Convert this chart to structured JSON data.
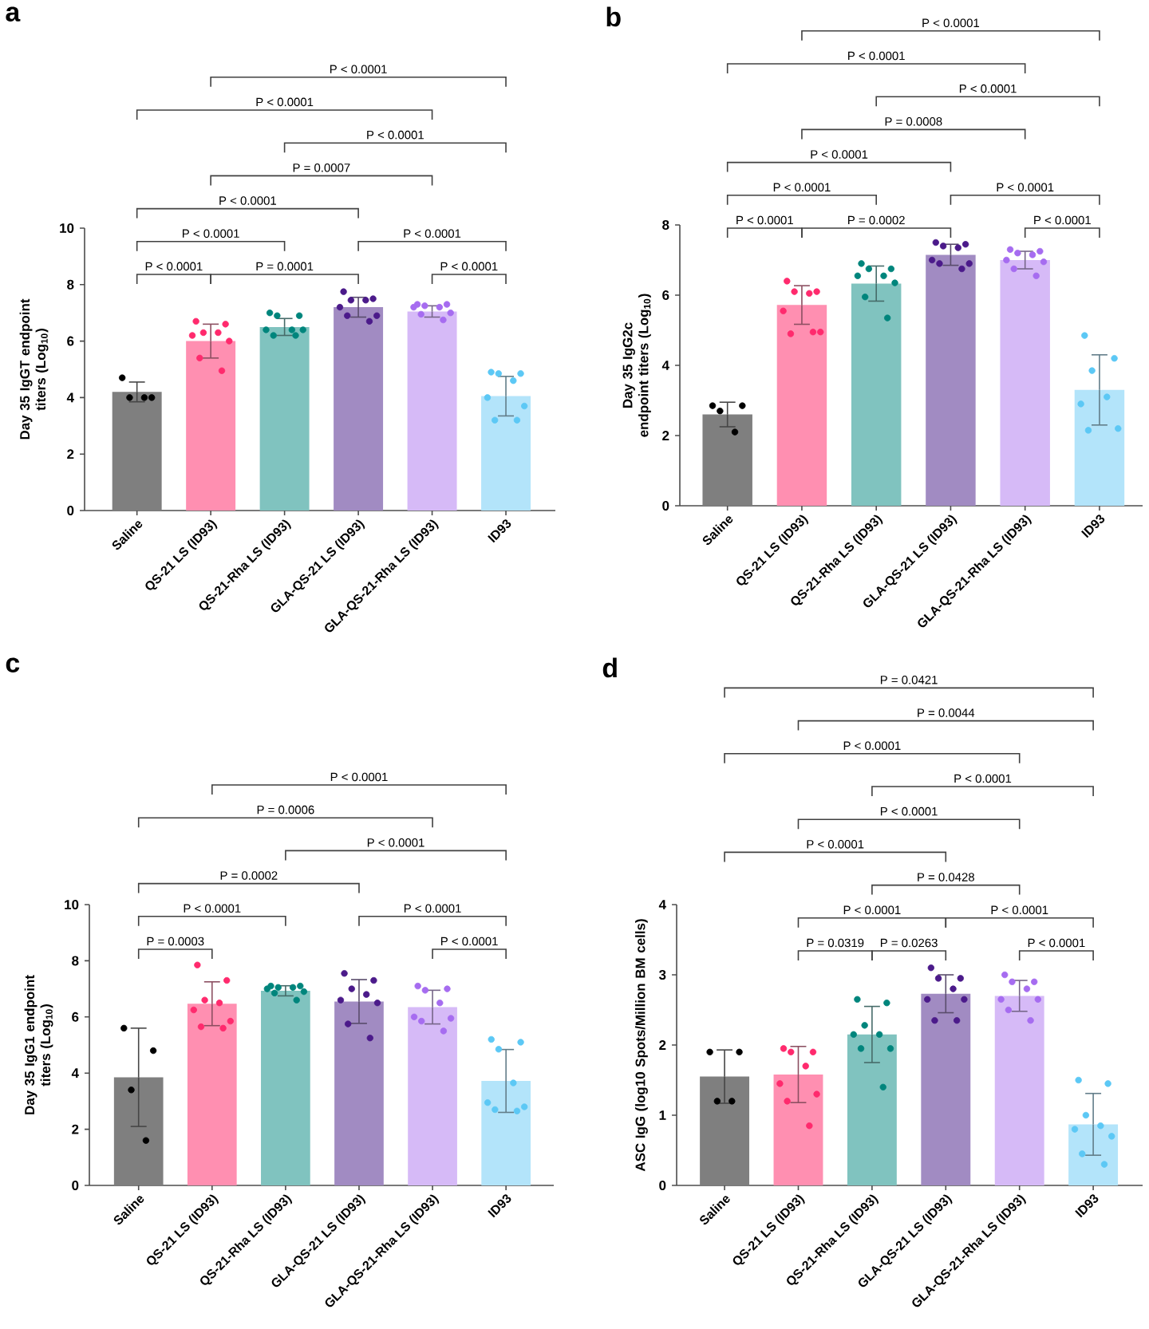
{
  "chart_data": [
    {
      "type": "bar",
      "title": "a",
      "ylabel": "Day 35 IgGT endpoint titers (Log$_{10}$)",
      "marker": "circle",
      "ylim": [
        0,
        10
      ],
      "yticks": [
        0,
        2,
        4,
        6,
        8,
        10
      ],
      "categories": [
        "Saline",
        "QS-21 LS (ID93)",
        "QS-21-Rha LS (ID93)",
        "GLA-QS-21 LS (ID93)",
        "GLA-QS-21-Rha LS (ID93)",
        "ID93"
      ],
      "series": [
        {
          "type": "bar",
          "values": [
            4.2,
            6.0,
            6.5,
            7.2,
            7.05,
            4.05
          ],
          "errors": [
            0.35,
            0.6,
            0.3,
            0.35,
            0.2,
            0.7
          ],
          "colors": [
            "#7f7f7f",
            "#ff8fb1",
            "#80c3bf",
            "#a18bc2",
            "#d6baf7",
            "#b3e4fa"
          ]
        },
        {
          "type": "scatter",
          "color": "#000000",
          "x": [
            "Saline",
            "Saline",
            "Saline",
            "Saline"
          ],
          "values": [
            4.7,
            4.0,
            4.0,
            4.0
          ]
        },
        {
          "type": "scatter",
          "color": "#ff2a6d",
          "x": [
            "QS-21 LS (ID93)",
            "QS-21 LS (ID93)",
            "QS-21 LS (ID93)",
            "QS-21 LS (ID93)",
            "QS-21 LS (ID93)",
            "QS-21 LS (ID93)",
            "QS-21 LS (ID93)",
            "QS-21 LS (ID93)"
          ],
          "values": [
            6.7,
            6.6,
            6.3,
            6.3,
            6.2,
            6.0,
            5.4,
            4.95
          ]
        },
        {
          "type": "scatter",
          "color": "#00857c",
          "x": [
            "QS-21-Rha LS (ID93)",
            "QS-21-Rha LS (ID93)",
            "QS-21-Rha LS (ID93)",
            "QS-21-Rha LS (ID93)",
            "QS-21-Rha LS (ID93)",
            "QS-21-Rha LS (ID93)",
            "QS-21-Rha LS (ID93)",
            "QS-21-Rha LS (ID93)"
          ],
          "values": [
            7.0,
            6.9,
            6.9,
            6.4,
            6.4,
            6.4,
            6.2,
            6.2
          ]
        },
        {
          "type": "scatter",
          "color": "#4b1a8a",
          "x": [
            "GLA-QS-21 LS (ID93)",
            "GLA-QS-21 LS (ID93)",
            "GLA-QS-21 LS (ID93)",
            "GLA-QS-21 LS (ID93)",
            "GLA-QS-21 LS (ID93)",
            "GLA-QS-21 LS (ID93)",
            "GLA-QS-21 LS (ID93)",
            "GLA-QS-21 LS (ID93)"
          ],
          "values": [
            7.75,
            7.5,
            7.45,
            7.45,
            7.2,
            6.9,
            6.9,
            6.7
          ]
        },
        {
          "type": "scatter",
          "color": "#a66cf0",
          "x": [
            "GLA-QS-21-Rha LS (ID93)",
            "GLA-QS-21-Rha LS (ID93)",
            "GLA-QS-21-Rha LS (ID93)",
            "GLA-QS-21-Rha LS (ID93)",
            "GLA-QS-21-Rha LS (ID93)",
            "GLA-QS-21-Rha LS (ID93)",
            "GLA-QS-21-Rha LS (ID93)",
            "GLA-QS-21-Rha LS (ID93)"
          ],
          "values": [
            7.3,
            7.3,
            7.25,
            7.2,
            7.2,
            7.0,
            6.95,
            6.75
          ]
        },
        {
          "type": "scatter",
          "color": "#5cc8f5",
          "x": [
            "ID93",
            "ID93",
            "ID93",
            "ID93",
            "ID93",
            "ID93",
            "ID93",
            "ID93"
          ],
          "values": [
            4.9,
            4.85,
            4.85,
            4.6,
            4.0,
            3.7,
            3.2,
            3.2
          ]
        }
      ],
      "annotations": [
        "P < 0.0001",
        "P < 0.0001",
        "P < 0.0001",
        "P = 0.0007",
        "P < 0.0001",
        "P < 0.0001",
        "P < 0.0001",
        "P < 0.0001",
        "P = 0.0001",
        "P < 0.0001"
      ]
    },
    {
      "type": "bar",
      "title": "b",
      "ylabel": "Day 35 IgG2c endpoint titers (Log$_{10}$)",
      "marker": "circle",
      "ylim": [
        0,
        8
      ],
      "yticks": [
        0,
        2,
        4,
        6,
        8
      ],
      "categories": [
        "Saline",
        "QS-21 LS (ID93)",
        "QS-21-Rha LS (ID93)",
        "GLA-QS-21 LS (ID93)",
        "GLA-QS-21-Rha LS (ID93)",
        "ID93"
      ],
      "series": [
        {
          "type": "bar",
          "values": [
            2.6,
            5.72,
            6.33,
            7.15,
            7.0,
            3.3
          ],
          "errors": [
            0.35,
            0.55,
            0.5,
            0.3,
            0.25,
            1.0
          ],
          "colors": [
            "#7f7f7f",
            "#ff8fb1",
            "#80c3bf",
            "#a18bc2",
            "#d6baf7",
            "#b3e4fa"
          ]
        },
        {
          "type": "scatter",
          "color": "#000000",
          "x": [
            "Saline",
            "Saline",
            "Saline",
            "Saline"
          ],
          "values": [
            2.85,
            2.85,
            2.7,
            2.1
          ]
        },
        {
          "type": "scatter",
          "color": "#ff2a6d",
          "x": [
            "QS-21 LS (ID93)",
            "QS-21 LS (ID93)",
            "QS-21 LS (ID93)",
            "QS-21 LS (ID93)",
            "QS-21 LS (ID93)",
            "QS-21 LS (ID93)",
            "QS-21 LS (ID93)",
            "QS-21 LS (ID93)"
          ],
          "values": [
            6.4,
            6.1,
            6.1,
            6.05,
            5.55,
            4.95,
            4.9,
            4.95
          ]
        },
        {
          "type": "scatter",
          "color": "#00857c",
          "x": [
            "QS-21-Rha LS (ID93)",
            "QS-21-Rha LS (ID93)",
            "QS-21-Rha LS (ID93)",
            "QS-21-Rha LS (ID93)",
            "QS-21-Rha LS (ID93)",
            "QS-21-Rha LS (ID93)",
            "QS-21-Rha LS (ID93)",
            "QS-21-Rha LS (ID93)"
          ],
          "values": [
            6.9,
            6.75,
            6.75,
            6.55,
            6.55,
            6.35,
            5.95,
            5.35
          ]
        },
        {
          "type": "scatter",
          "color": "#4b1a8a",
          "x": [
            "GLA-QS-21 LS (ID93)",
            "GLA-QS-21 LS (ID93)",
            "GLA-QS-21 LS (ID93)",
            "GLA-QS-21 LS (ID93)",
            "GLA-QS-21 LS (ID93)",
            "GLA-QS-21 LS (ID93)",
            "GLA-QS-21 LS (ID93)",
            "GLA-QS-21 LS (ID93)"
          ],
          "values": [
            7.5,
            7.45,
            7.4,
            7.35,
            7.0,
            6.9,
            6.9,
            6.75
          ]
        },
        {
          "type": "scatter",
          "color": "#a66cf0",
          "x": [
            "GLA-QS-21-Rha LS (ID93)",
            "GLA-QS-21-Rha LS (ID93)",
            "GLA-QS-21-Rha LS (ID93)",
            "GLA-QS-21-Rha LS (ID93)",
            "GLA-QS-21-Rha LS (ID93)",
            "GLA-QS-21-Rha LS (ID93)",
            "GLA-QS-21-Rha LS (ID93)",
            "GLA-QS-21-Rha LS (ID93)"
          ],
          "values": [
            7.3,
            7.25,
            7.2,
            7.15,
            7.0,
            6.95,
            6.75,
            6.55
          ]
        },
        {
          "type": "scatter",
          "color": "#5cc8f5",
          "x": [
            "ID93",
            "ID93",
            "ID93",
            "ID93",
            "ID93",
            "ID93",
            "ID93"
          ],
          "values": [
            4.85,
            4.2,
            3.85,
            3.1,
            2.9,
            2.2,
            2.15
          ]
        }
      ],
      "annotations": [
        "P < 0.0001",
        "P < 0.0001",
        "P < 0.0001",
        "P = 0.0008",
        "P < 0.0001",
        "P < 0.0001",
        "P < 0.0001",
        "P < 0.0001",
        "P = 0.0002",
        "P < 0.0001"
      ]
    },
    {
      "type": "bar",
      "title": "c",
      "ylabel": "Day 35 IgG1 endpoint titers (Log$_{10}$)",
      "marker": "circle",
      "ylim": [
        0,
        10
      ],
      "yticks": [
        0,
        2,
        4,
        6,
        8,
        10
      ],
      "categories": [
        "Saline",
        "QS-21 LS (ID93)",
        "QS-21-Rha LS (ID93)",
        "GLA-QS-21 LS (ID93)",
        "GLA-QS-21-Rha LS (ID93)",
        "ID93"
      ],
      "series": [
        {
          "type": "bar",
          "values": [
            3.85,
            6.47,
            6.93,
            6.55,
            6.35,
            3.72
          ],
          "errors": [
            1.75,
            0.78,
            0.18,
            0.78,
            0.6,
            1.12
          ],
          "colors": [
            "#7f7f7f",
            "#ff8fb1",
            "#80c3bf",
            "#a18bc2",
            "#d6baf7",
            "#b3e4fa"
          ]
        },
        {
          "type": "scatter",
          "color": "#000000",
          "x": [
            "Saline",
            "Saline",
            "Saline",
            "Saline"
          ],
          "values": [
            5.6,
            4.8,
            3.4,
            1.6
          ]
        },
        {
          "type": "scatter",
          "color": "#ff2a6d",
          "x": [
            "QS-21 LS (ID93)",
            "QS-21 LS (ID93)",
            "QS-21 LS (ID93)",
            "QS-21 LS (ID93)",
            "QS-21 LS (ID93)",
            "QS-21 LS (ID93)",
            "QS-21 LS (ID93)",
            "QS-21 LS (ID93)"
          ],
          "values": [
            7.85,
            7.3,
            6.6,
            6.5,
            6.25,
            5.85,
            5.65,
            5.6
          ]
        },
        {
          "type": "scatter",
          "color": "#00857c",
          "x": [
            "QS-21-Rha LS (ID93)",
            "QS-21-Rha LS (ID93)",
            "QS-21-Rha LS (ID93)",
            "QS-21-Rha LS (ID93)",
            "QS-21-Rha LS (ID93)",
            "QS-21-Rha LS (ID93)",
            "QS-21-Rha LS (ID93)",
            "QS-21-Rha LS (ID93)"
          ],
          "values": [
            7.1,
            7.1,
            7.05,
            7.05,
            7.0,
            6.9,
            6.85,
            6.6
          ]
        },
        {
          "type": "scatter",
          "color": "#4b1a8a",
          "x": [
            "GLA-QS-21 LS (ID93)",
            "GLA-QS-21 LS (ID93)",
            "GLA-QS-21 LS (ID93)",
            "GLA-QS-21 LS (ID93)",
            "GLA-QS-21 LS (ID93)",
            "GLA-QS-21 LS (ID93)",
            "GLA-QS-21 LS (ID93)",
            "GLA-QS-21 LS (ID93)"
          ],
          "values": [
            7.55,
            7.3,
            7.0,
            6.8,
            6.6,
            6.5,
            5.75,
            5.25
          ]
        },
        {
          "type": "scatter",
          "color": "#a66cf0",
          "x": [
            "GLA-QS-21-Rha LS (ID93)",
            "GLA-QS-21-Rha LS (ID93)",
            "GLA-QS-21-Rha LS (ID93)",
            "GLA-QS-21-Rha LS (ID93)",
            "GLA-QS-21-Rha LS (ID93)",
            "GLA-QS-21-Rha LS (ID93)",
            "GLA-QS-21-Rha LS (ID93)",
            "GLA-QS-21-Rha LS (ID93)"
          ],
          "values": [
            7.1,
            7.0,
            6.95,
            6.5,
            6.0,
            5.95,
            5.85,
            5.5
          ]
        },
        {
          "type": "scatter",
          "color": "#5cc8f5",
          "x": [
            "ID93",
            "ID93",
            "ID93",
            "ID93",
            "ID93",
            "ID93",
            "ID93",
            "ID93"
          ],
          "values": [
            5.2,
            5.1,
            4.85,
            3.65,
            2.95,
            2.8,
            2.7,
            2.65
          ]
        }
      ],
      "annotations": [
        "P < 0.0001",
        "P = 0.0006",
        "P < 0.0001",
        "P = 0.0002",
        "P < 0.0001",
        "P < 0.0001",
        "P = 0.0003",
        "P < 0.0001"
      ]
    },
    {
      "type": "bar",
      "title": "d",
      "ylabel": "ASC IgG (log10 Spots/Million BM cells)",
      "marker": "circle",
      "ylim": [
        0,
        4
      ],
      "yticks": [
        0,
        1,
        2,
        3,
        4
      ],
      "categories": [
        "Saline",
        "QS-21 LS (ID93)",
        "QS-21-Rha LS (ID93)",
        "GLA-QS-21 LS (ID93)",
        "GLA-QS-21-Rha LS (ID93)",
        "ID93"
      ],
      "series": [
        {
          "type": "bar",
          "values": [
            1.55,
            1.58,
            2.15,
            2.73,
            2.7,
            0.87
          ],
          "errors": [
            0.38,
            0.4,
            0.4,
            0.27,
            0.22,
            0.44
          ],
          "colors": [
            "#7f7f7f",
            "#ff8fb1",
            "#80c3bf",
            "#a18bc2",
            "#d6baf7",
            "#b3e4fa"
          ]
        },
        {
          "type": "scatter",
          "color": "#000000",
          "x": [
            "Saline",
            "Saline",
            "Saline",
            "Saline"
          ],
          "values": [
            1.9,
            1.9,
            1.2,
            1.2
          ]
        },
        {
          "type": "scatter",
          "color": "#ff2a6d",
          "x": [
            "QS-21 LS (ID93)",
            "QS-21 LS (ID93)",
            "QS-21 LS (ID93)",
            "QS-21 LS (ID93)",
            "QS-21 LS (ID93)",
            "QS-21 LS (ID93)",
            "QS-21 LS (ID93)",
            "QS-21 LS (ID93)"
          ],
          "values": [
            1.95,
            1.9,
            1.9,
            1.7,
            1.45,
            1.3,
            1.2,
            0.85
          ]
        },
        {
          "type": "scatter",
          "color": "#00857c",
          "x": [
            "QS-21-Rha LS (ID93)",
            "QS-21-Rha LS (ID93)",
            "QS-21-Rha LS (ID93)",
            "QS-21-Rha LS (ID93)",
            "QS-21-Rha LS (ID93)",
            "QS-21-Rha LS (ID93)",
            "QS-21-Rha LS (ID93)",
            "QS-21-Rha LS (ID93)"
          ],
          "values": [
            2.65,
            2.6,
            2.28,
            2.15,
            2.15,
            1.95,
            1.95,
            1.4
          ]
        },
        {
          "type": "scatter",
          "color": "#4b1a8a",
          "x": [
            "GLA-QS-21 LS (ID93)",
            "GLA-QS-21 LS (ID93)",
            "GLA-QS-21 LS (ID93)",
            "GLA-QS-21 LS (ID93)",
            "GLA-QS-21 LS (ID93)",
            "GLA-QS-21 LS (ID93)",
            "GLA-QS-21 LS (ID93)",
            "GLA-QS-21 LS (ID93)"
          ],
          "values": [
            3.1,
            2.95,
            2.95,
            2.8,
            2.65,
            2.65,
            2.35,
            2.35
          ]
        },
        {
          "type": "scatter",
          "color": "#a66cf0",
          "x": [
            "GLA-QS-21-Rha LS (ID93)",
            "GLA-QS-21-Rha LS (ID93)",
            "GLA-QS-21-Rha LS (ID93)",
            "GLA-QS-21-Rha LS (ID93)",
            "GLA-QS-21-Rha LS (ID93)",
            "GLA-QS-21-Rha LS (ID93)",
            "GLA-QS-21-Rha LS (ID93)",
            "GLA-QS-21-Rha LS (ID93)"
          ],
          "values": [
            3.0,
            2.9,
            2.9,
            2.8,
            2.65,
            2.65,
            2.5,
            2.35
          ]
        },
        {
          "type": "scatter",
          "color": "#5cc8f5",
          "x": [
            "ID93",
            "ID93",
            "ID93",
            "ID93",
            "ID93",
            "ID93",
            "ID93",
            "ID93"
          ],
          "values": [
            1.5,
            1.45,
            1.0,
            0.85,
            0.8,
            0.7,
            0.45,
            0.3
          ]
        }
      ],
      "annotations": [
        "P = 0.0421",
        "P = 0.0044",
        "P < 0.0001",
        "P < 0.0001",
        "P < 0.0001",
        "P < 0.0001",
        "P = 0.0428",
        "P < 0.0001",
        "P < 0.0001",
        "P = 0.0319",
        "P = 0.0263",
        "P < 0.0001"
      ]
    }
  ]
}
